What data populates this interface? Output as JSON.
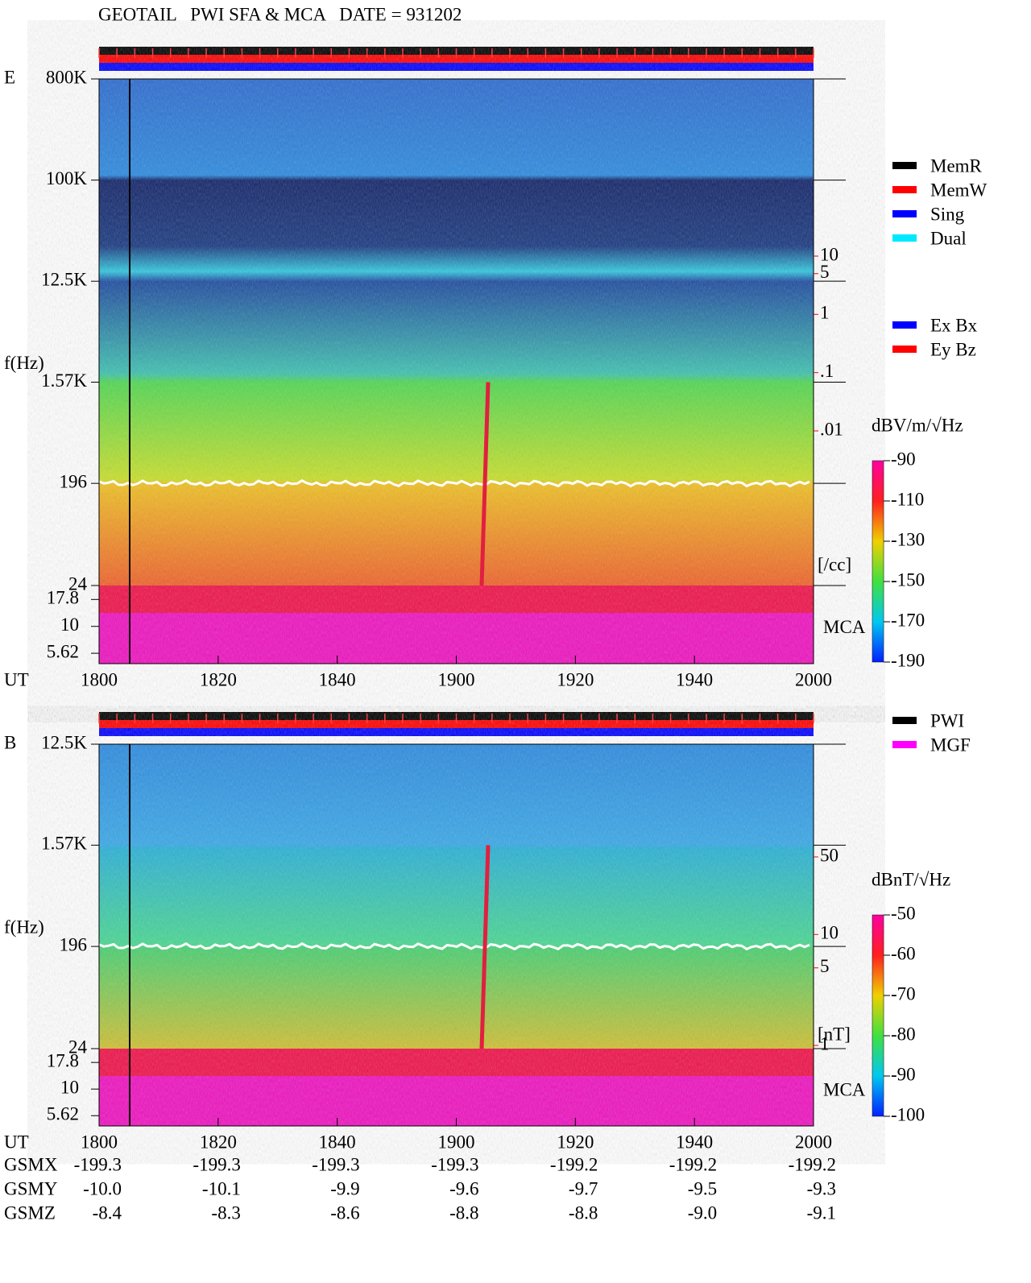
{
  "title": "GEOTAIL   PWI SFA & MCA   DATE = 931202",
  "chart_data": [
    {
      "type": "spectrogram",
      "panel_label": "E",
      "y_label": "f(Hz)",
      "x_label": "UT",
      "log_y": true,
      "xticks": [
        "1800",
        "1820",
        "1840",
        "1900",
        "1920",
        "1940",
        "2000"
      ],
      "ylim": [
        24,
        800000
      ],
      "yticks": [
        {
          "value": 800000,
          "label": "800K"
        },
        {
          "value": 100000,
          "label": "100K"
        },
        {
          "value": 12500,
          "label": "12.5K"
        },
        {
          "value": 1570,
          "label": "1.57K"
        },
        196,
        24
      ],
      "mca_label": "MCA",
      "mca_ylim": [
        4.5,
        24
      ],
      "mca_yticks": [
        17.8,
        10,
        5.62
      ],
      "legend": [
        {
          "name": "MemR",
          "color": "#000000"
        },
        {
          "name": "MemW",
          "color": "#ff0000"
        },
        {
          "name": "Sing",
          "color": "#0000ff"
        },
        {
          "name": "Dual",
          "color": "#00e8ff"
        }
      ],
      "legend2": [
        {
          "name": "Ex Bx",
          "color": "#0000ff"
        },
        {
          "name": "Ey Bz",
          "color": "#ff0000"
        }
      ],
      "side_axis": {
        "label": "[/cc]",
        "color": "#ff0000",
        "ylim": [
          0.01,
          10
        ],
        "yticks": [
          10,
          5,
          1,
          {
            "value": 0.1,
            "label": ".1"
          },
          {
            "value": 0.01,
            "label": ".01"
          }
        ]
      },
      "colorbar": {
        "label": "dBV/m/√Hz",
        "ylim": [
          -190,
          -90
        ],
        "yticks": [
          -90,
          -110,
          -130,
          -150,
          -170,
          -190
        ]
      }
    },
    {
      "type": "spectrogram",
      "panel_label": "B",
      "y_label": "f(Hz)",
      "x_label": "UT",
      "log_y": true,
      "xticks": [
        "1800",
        "1820",
        "1840",
        "1900",
        "1920",
        "1940",
        "2000"
      ],
      "ylim": [
        24,
        12500
      ],
      "yticks": [
        {
          "value": 12500,
          "label": "12.5K"
        },
        {
          "value": 1570,
          "label": "1.57K"
        },
        196,
        24
      ],
      "mca_label": "MCA",
      "mca_ylim": [
        4.5,
        24
      ],
      "mca_yticks": [
        17.8,
        10,
        5.62
      ],
      "legend": [
        {
          "name": "PWI",
          "color": "#000000"
        },
        {
          "name": "MGF",
          "color": "#ff00ff"
        }
      ],
      "side_axis": {
        "label": "[nT]",
        "color": "#ff0000",
        "ylim": [
          1,
          50
        ],
        "yticks": [
          50,
          10,
          5,
          1
        ]
      },
      "colorbar": {
        "label": "dBnT/√Hz",
        "ylim": [
          -100,
          -50
        ],
        "yticks": [
          -50,
          -60,
          -70,
          -80,
          -90,
          -100
        ]
      }
    }
  ],
  "orbit": {
    "rows": [
      {
        "name": "GSMX",
        "values": [
          "-199.3",
          "-199.3",
          "-199.3",
          "-199.3",
          "-199.2",
          "-199.2",
          "-199.2"
        ]
      },
      {
        "name": "GSMY",
        "values": [
          "-10.0",
          "-10.1",
          "-9.9",
          "-9.6",
          "-9.7",
          "-9.5",
          "-9.3"
        ]
      },
      {
        "name": "GSMZ",
        "values": [
          "-8.4",
          "-8.3",
          "-8.6",
          "-8.8",
          "-8.8",
          "-9.0",
          "-9.1"
        ]
      }
    ]
  }
}
